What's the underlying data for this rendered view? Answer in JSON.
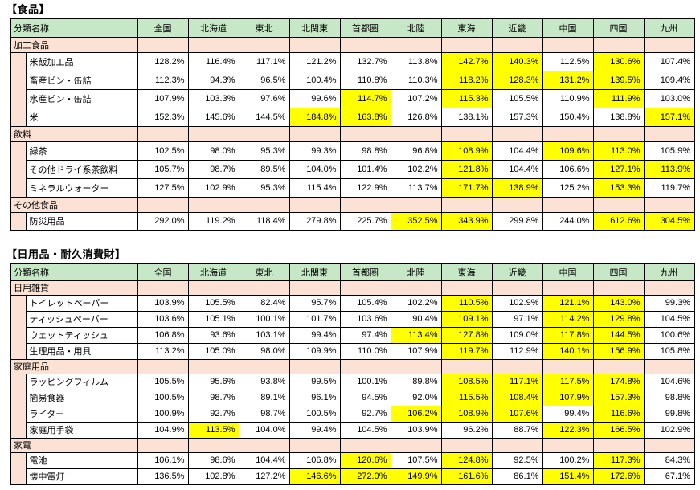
{
  "colors": {
    "header_green": "#c6e8c6",
    "category_pink": "#fbe2d5",
    "highlight_yellow": "#ffff00",
    "border": "#000000"
  },
  "chart_data": [
    {
      "type": "table",
      "title": "【食品】",
      "columns": [
        "分類名称",
        "全国",
        "北海道",
        "東北",
        "北関東",
        "首都圏",
        "北陸",
        "東海",
        "近畿",
        "中国",
        "四国",
        "九州"
      ],
      "sections": [
        {
          "category": "加工食品",
          "rows": [
            {
              "label": "米飯加工品",
              "values": [
                "128.2%",
                "116.4%",
                "117.1%",
                "121.2%",
                "132.7%",
                "113.8%",
                "142.7%",
                "140.3%",
                "112.5%",
                "130.6%",
                "107.4%"
              ],
              "highlight": [
                0,
                0,
                0,
                0,
                0,
                0,
                1,
                1,
                0,
                1,
                0
              ]
            },
            {
              "label": "畜産ビン・缶詰",
              "values": [
                "112.3%",
                "94.3%",
                "96.5%",
                "100.4%",
                "110.8%",
                "110.3%",
                "118.2%",
                "128.3%",
                "131.2%",
                "139.5%",
                "109.4%"
              ],
              "highlight": [
                0,
                0,
                0,
                0,
                0,
                0,
                1,
                1,
                1,
                1,
                0
              ]
            },
            {
              "label": "水産ビン・缶詰",
              "values": [
                "107.9%",
                "103.3%",
                "97.6%",
                "99.6%",
                "114.7%",
                "107.2%",
                "115.3%",
                "105.5%",
                "110.9%",
                "111.9%",
                "103.0%"
              ],
              "highlight": [
                0,
                0,
                0,
                0,
                1,
                0,
                1,
                0,
                0,
                1,
                0
              ]
            },
            {
              "label": "米",
              "values": [
                "152.3%",
                "145.6%",
                "144.5%",
                "184.8%",
                "163.8%",
                "126.8%",
                "138.1%",
                "157.3%",
                "150.4%",
                "138.8%",
                "157.1%"
              ],
              "highlight": [
                0,
                0,
                0,
                1,
                1,
                0,
                0,
                0,
                0,
                0,
                1
              ]
            }
          ]
        },
        {
          "category": "飲料",
          "rows": [
            {
              "label": "緑茶",
              "values": [
                "102.5%",
                "98.0%",
                "95.3%",
                "99.3%",
                "98.8%",
                "96.8%",
                "108.9%",
                "104.4%",
                "109.6%",
                "113.0%",
                "105.9%"
              ],
              "highlight": [
                0,
                0,
                0,
                0,
                0,
                0,
                1,
                0,
                1,
                1,
                0
              ]
            },
            {
              "label": "その他ドライ系茶飲料",
              "values": [
                "105.7%",
                "98.7%",
                "89.5%",
                "104.0%",
                "101.4%",
                "102.2%",
                "121.8%",
                "104.4%",
                "106.6%",
                "127.1%",
                "113.9%"
              ],
              "highlight": [
                0,
                0,
                0,
                0,
                0,
                0,
                1,
                0,
                0,
                1,
                1
              ]
            },
            {
              "label": "ミネラルウォーター",
              "values": [
                "127.5%",
                "102.9%",
                "95.3%",
                "115.4%",
                "122.9%",
                "113.7%",
                "171.7%",
                "138.9%",
                "125.2%",
                "153.3%",
                "119.7%"
              ],
              "highlight": [
                0,
                0,
                0,
                0,
                0,
                0,
                1,
                1,
                0,
                1,
                0
              ]
            }
          ]
        },
        {
          "category": "その他食品",
          "rows": [
            {
              "label": "防災用品",
              "values": [
                "292.0%",
                "119.2%",
                "118.4%",
                "279.8%",
                "225.7%",
                "352.5%",
                "343.9%",
                "299.8%",
                "244.0%",
                "612.6%",
                "304.5%"
              ],
              "highlight": [
                0,
                0,
                0,
                0,
                0,
                1,
                1,
                0,
                0,
                1,
                1
              ]
            }
          ]
        }
      ]
    },
    {
      "type": "table",
      "title": "【日用品・耐久消費財】",
      "columns": [
        "分類名称",
        "全国",
        "北海道",
        "東北",
        "北関東",
        "首都圏",
        "北陸",
        "東海",
        "近畿",
        "中国",
        "四国",
        "九州"
      ],
      "sections": [
        {
          "category": "日用雑貨",
          "rows": [
            {
              "label": "トイレットペーパー",
              "values": [
                "103.9%",
                "105.5%",
                "82.4%",
                "95.7%",
                "105.4%",
                "102.2%",
                "110.5%",
                "102.9%",
                "121.1%",
                "143.0%",
                "99.3%"
              ],
              "highlight": [
                0,
                0,
                0,
                0,
                0,
                0,
                1,
                0,
                1,
                1,
                0
              ]
            },
            {
              "label": "ティッシュペーパー",
              "values": [
                "103.6%",
                "105.1%",
                "100.1%",
                "101.7%",
                "103.6%",
                "90.4%",
                "109.1%",
                "97.1%",
                "114.2%",
                "129.8%",
                "104.5%"
              ],
              "highlight": [
                0,
                0,
                0,
                0,
                0,
                0,
                1,
                0,
                1,
                1,
                0
              ]
            },
            {
              "label": "ウェットティッシュ",
              "values": [
                "106.8%",
                "93.6%",
                "103.1%",
                "99.4%",
                "97.4%",
                "113.4%",
                "127.8%",
                "109.0%",
                "117.8%",
                "144.5%",
                "100.6%"
              ],
              "highlight": [
                0,
                0,
                0,
                0,
                0,
                1,
                1,
                0,
                1,
                1,
                0
              ]
            },
            {
              "label": "生理用品・用具",
              "values": [
                "113.2%",
                "105.0%",
                "98.0%",
                "109.9%",
                "110.0%",
                "107.9%",
                "119.7%",
                "112.9%",
                "140.1%",
                "156.9%",
                "105.8%"
              ],
              "highlight": [
                0,
                0,
                0,
                0,
                0,
                0,
                1,
                0,
                1,
                1,
                0
              ]
            }
          ]
        },
        {
          "category": "家庭用品",
          "rows": [
            {
              "label": "ラッピングフィルム",
              "values": [
                "105.5%",
                "95.6%",
                "93.8%",
                "99.5%",
                "100.1%",
                "89.8%",
                "108.5%",
                "117.1%",
                "117.5%",
                "174.8%",
                "104.6%"
              ],
              "highlight": [
                0,
                0,
                0,
                0,
                0,
                0,
                1,
                1,
                1,
                1,
                0
              ]
            },
            {
              "label": "簡易食器",
              "values": [
                "100.5%",
                "98.7%",
                "89.1%",
                "96.1%",
                "94.5%",
                "92.0%",
                "115.5%",
                "108.4%",
                "107.9%",
                "157.3%",
                "98.8%"
              ],
              "highlight": [
                0,
                0,
                0,
                0,
                0,
                0,
                1,
                1,
                1,
                1,
                0
              ]
            },
            {
              "label": "ライター",
              "values": [
                "100.9%",
                "92.7%",
                "98.7%",
                "100.5%",
                "92.7%",
                "106.2%",
                "108.9%",
                "107.6%",
                "99.4%",
                "116.6%",
                "99.8%"
              ],
              "highlight": [
                0,
                0,
                0,
                0,
                0,
                1,
                1,
                1,
                0,
                1,
                0
              ]
            },
            {
              "label": "家庭用手袋",
              "values": [
                "104.9%",
                "113.5%",
                "104.0%",
                "99.4%",
                "104.5%",
                "103.9%",
                "96.2%",
                "88.7%",
                "122.3%",
                "166.5%",
                "102.9%"
              ],
              "highlight": [
                0,
                1,
                0,
                0,
                0,
                0,
                0,
                0,
                1,
                1,
                0
              ]
            }
          ]
        },
        {
          "category": "家電",
          "rows": [
            {
              "label": "電池",
              "values": [
                "106.1%",
                "98.6%",
                "104.4%",
                "106.8%",
                "120.6%",
                "107.5%",
                "124.8%",
                "92.5%",
                "100.2%",
                "117.3%",
                "84.3%"
              ],
              "highlight": [
                0,
                0,
                0,
                0,
                1,
                0,
                1,
                0,
                0,
                1,
                0
              ]
            },
            {
              "label": "懐中電灯",
              "values": [
                "136.5%",
                "102.8%",
                "127.2%",
                "146.6%",
                "272.0%",
                "149.9%",
                "161.6%",
                "86.1%",
                "151.4%",
                "172.6%",
                "67.1%"
              ],
              "highlight": [
                0,
                0,
                0,
                1,
                1,
                1,
                1,
                0,
                1,
                1,
                0
              ]
            }
          ]
        }
      ]
    }
  ]
}
